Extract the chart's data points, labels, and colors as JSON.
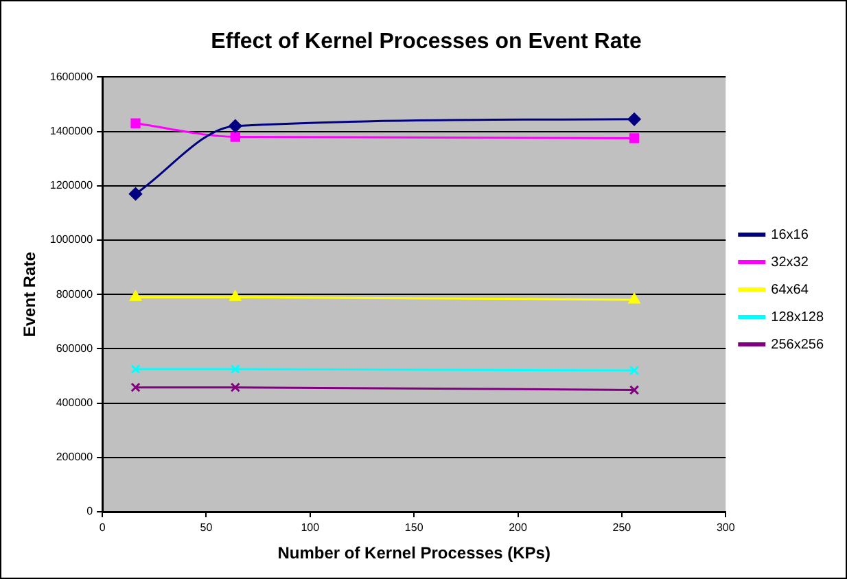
{
  "chart_data": {
    "type": "line",
    "title": "Effect of Kernel Processes on Event Rate",
    "xlabel": "Number of Kernel Processes (KPs)",
    "ylabel": "Event Rate",
    "x": [
      16,
      64,
      256
    ],
    "series": [
      {
        "name": "16x16",
        "color": "#000080",
        "marker": "diamond",
        "values": [
          1170000,
          1420000,
          1445000
        ]
      },
      {
        "name": "32x32",
        "color": "#ff00ff",
        "marker": "square",
        "values": [
          1430000,
          1380000,
          1375000
        ]
      },
      {
        "name": "64x64",
        "color": "#ffff00",
        "marker": "triangle",
        "values": [
          790000,
          790000,
          780000
        ]
      },
      {
        "name": "128x128",
        "color": "#00ffff",
        "marker": "cross",
        "values": [
          525000,
          525000,
          520000
        ]
      },
      {
        "name": "256x256",
        "color": "#800080",
        "marker": "cross",
        "values": [
          458000,
          458000,
          448000
        ]
      }
    ],
    "xlim": [
      0,
      300
    ],
    "xticks": [
      0,
      50,
      100,
      150,
      200,
      250,
      300
    ],
    "ylim": [
      0,
      1600000
    ],
    "yticks": [
      0,
      200000,
      400000,
      600000,
      800000,
      1000000,
      1200000,
      1400000,
      1600000
    ],
    "grid": "y",
    "legend": "right",
    "line_style": "solid"
  }
}
